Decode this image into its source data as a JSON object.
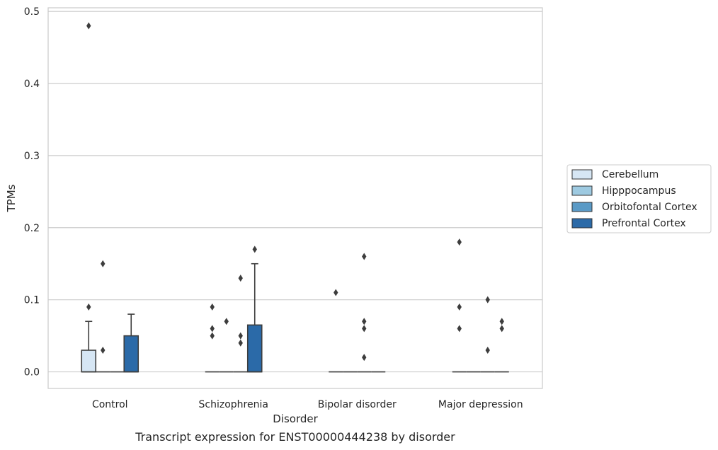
{
  "chart_data": {
    "type": "box",
    "title": "",
    "caption": "Transcript expression for ENST00000444238 by disorder",
    "xlabel": "Disorder",
    "ylabel": "TPMs",
    "ylim": [
      -0.023,
      0.505
    ],
    "yticks": [
      0.0,
      0.1,
      0.2,
      0.3,
      0.4,
      0.5
    ],
    "ytick_labels": [
      "0.0",
      "0.1",
      "0.2",
      "0.3",
      "0.4",
      "0.5"
    ],
    "grid": "horizontal",
    "legend_position": "right",
    "categories": [
      "Control",
      "Schizophrenia",
      "Bipolar disorder",
      "Major depression"
    ],
    "series": [
      {
        "name": "Cerebellum",
        "color": "#d6e6f4",
        "boxes": [
          {
            "q1": 0.0,
            "median": 0.0,
            "q3": 0.03,
            "whisker_low": 0.0,
            "whisker_high": 0.07,
            "outliers": [
              0.09,
              0.48
            ]
          },
          {
            "q1": 0.0,
            "median": 0.0,
            "q3": 0.0,
            "whisker_low": 0.0,
            "whisker_high": 0.0,
            "outliers": [
              0.05,
              0.06,
              0.09
            ]
          },
          {
            "q1": 0.0,
            "median": 0.0,
            "q3": 0.0,
            "whisker_low": 0.0,
            "whisker_high": 0.0,
            "outliers": [
              0.11
            ]
          },
          {
            "q1": 0.0,
            "median": 0.0,
            "q3": 0.0,
            "whisker_low": 0.0,
            "whisker_high": 0.0,
            "outliers": [
              0.06,
              0.09,
              0.18
            ]
          }
        ]
      },
      {
        "name": "Hipppocampus",
        "color": "#9ecae1",
        "boxes": [
          {
            "q1": 0.0,
            "median": 0.0,
            "q3": 0.0,
            "whisker_low": 0.0,
            "whisker_high": 0.0,
            "outliers": [
              0.03,
              0.15
            ]
          },
          {
            "q1": 0.0,
            "median": 0.0,
            "q3": 0.0,
            "whisker_low": 0.0,
            "whisker_high": 0.0,
            "outliers": [
              0.07
            ]
          },
          {
            "q1": 0.0,
            "median": 0.0,
            "q3": 0.0,
            "whisker_low": 0.0,
            "whisker_high": 0.0,
            "outliers": []
          },
          {
            "q1": 0.0,
            "median": 0.0,
            "q3": 0.0,
            "whisker_low": 0.0,
            "whisker_high": 0.0,
            "outliers": []
          }
        ]
      },
      {
        "name": "Orbitofontal Cortex",
        "color": "#5a9ac6",
        "boxes": [
          {
            "q1": 0.0,
            "median": 0.0,
            "q3": 0.0,
            "whisker_low": 0.0,
            "whisker_high": 0.0,
            "outliers": []
          },
          {
            "q1": 0.0,
            "median": 0.0,
            "q3": 0.0,
            "whisker_low": 0.0,
            "whisker_high": 0.0,
            "outliers": [
              0.04,
              0.05,
              0.13
            ]
          },
          {
            "q1": 0.0,
            "median": 0.0,
            "q3": 0.0,
            "whisker_low": 0.0,
            "whisker_high": 0.0,
            "outliers": [
              0.02,
              0.06,
              0.07,
              0.16
            ]
          },
          {
            "q1": 0.0,
            "median": 0.0,
            "q3": 0.0,
            "whisker_low": 0.0,
            "whisker_high": 0.0,
            "outliers": [
              0.03,
              0.1
            ]
          }
        ]
      },
      {
        "name": "Prefrontal Cortex",
        "color": "#2b6aa8",
        "boxes": [
          {
            "q1": 0.0,
            "median": 0.0,
            "q3": 0.05,
            "whisker_low": 0.0,
            "whisker_high": 0.08,
            "outliers": []
          },
          {
            "q1": 0.0,
            "median": 0.0,
            "q3": 0.065,
            "whisker_low": 0.0,
            "whisker_high": 0.15,
            "outliers": [
              0.17
            ]
          },
          {
            "q1": 0.0,
            "median": 0.0,
            "q3": 0.0,
            "whisker_low": 0.0,
            "whisker_high": 0.0,
            "outliers": []
          },
          {
            "q1": 0.0,
            "median": 0.0,
            "q3": 0.0,
            "whisker_low": 0.0,
            "whisker_high": 0.0,
            "outliers": [
              0.06,
              0.07
            ]
          }
        ]
      }
    ]
  }
}
